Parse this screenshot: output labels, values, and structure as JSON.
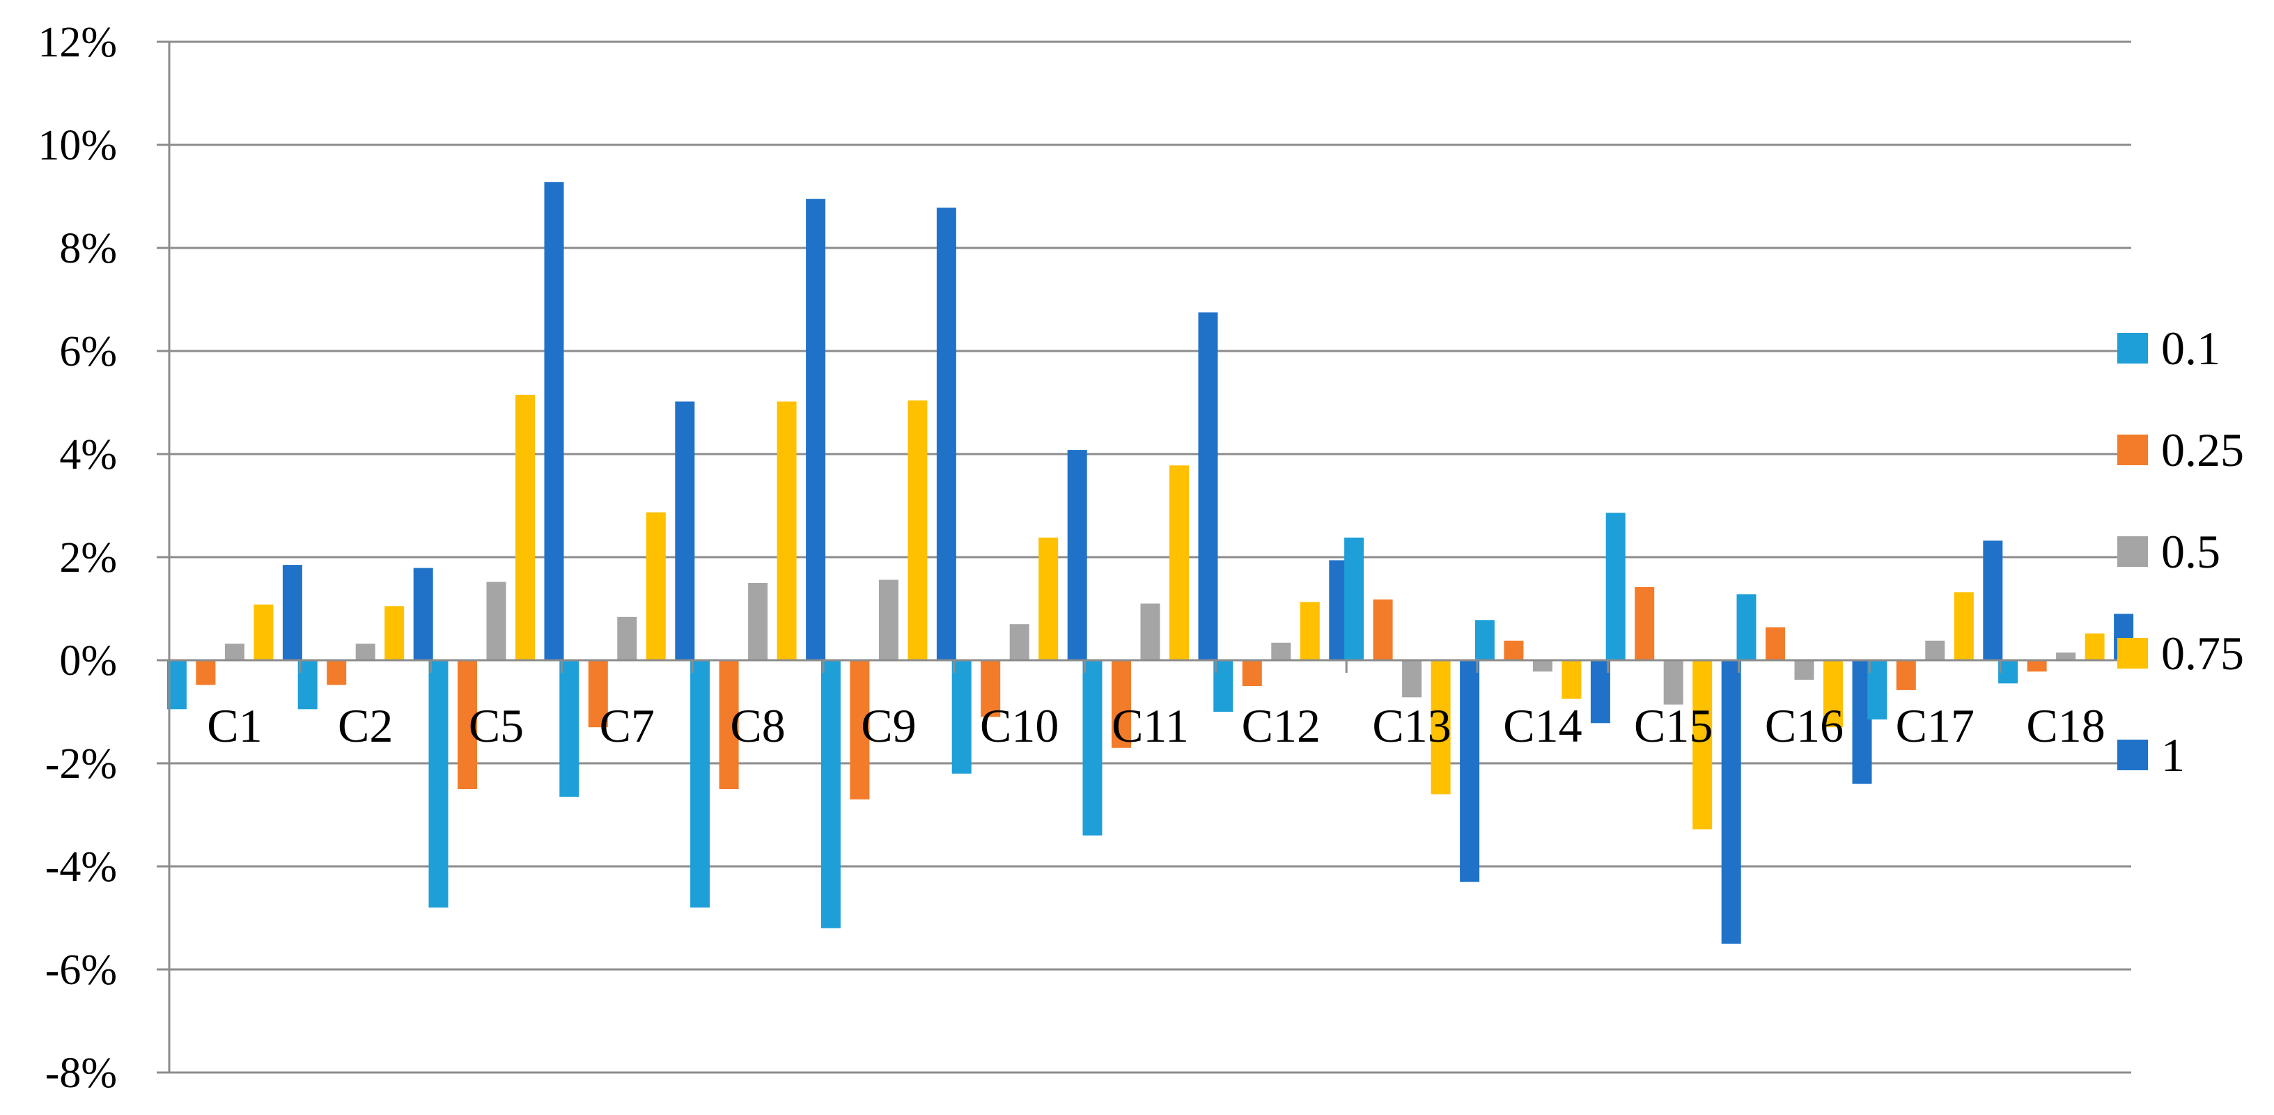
{
  "chart_data": {
    "type": "bar",
    "title": "",
    "xlabel": "",
    "ylabel": "",
    "ylim": [
      -8,
      12
    ],
    "ytick_step": 2,
    "ytick_suffix": "%",
    "grid": true,
    "legend_position": "right",
    "categories": [
      "C1",
      "C2",
      "C5",
      "C7",
      "C8",
      "C9",
      "C10",
      "C11",
      "C12",
      "C13",
      "C14",
      "C15",
      "C16",
      "C17",
      "C18"
    ],
    "series": [
      {
        "name": "0.1",
        "color": "#1F9FD8",
        "values": [
          -0.95,
          -0.95,
          -4.8,
          -2.65,
          -4.8,
          -5.2,
          -2.2,
          -3.4,
          -1.0,
          2.38,
          0.78,
          2.86,
          1.28,
          -1.15,
          -0.45
        ]
      },
      {
        "name": "0.25",
        "color": "#F27C2A",
        "values": [
          -0.48,
          -0.48,
          -2.5,
          -1.3,
          -2.5,
          -2.7,
          -1.1,
          -1.7,
          -0.5,
          1.18,
          0.38,
          1.42,
          0.64,
          -0.58,
          -0.22
        ]
      },
      {
        "name": "0.5",
        "color": "#A5A5A5",
        "values": [
          0.32,
          0.32,
          1.52,
          0.84,
          1.5,
          1.56,
          0.7,
          1.1,
          0.34,
          -0.72,
          -0.22,
          -0.86,
          -0.38,
          0.38,
          0.15
        ]
      },
      {
        "name": "0.75",
        "color": "#FFC000",
        "values": [
          1.08,
          1.05,
          5.15,
          2.87,
          5.02,
          5.04,
          2.38,
          3.78,
          1.13,
          -2.6,
          -0.75,
          -3.28,
          -1.3,
          1.32,
          0.52
        ]
      },
      {
        "name": "1",
        "color": "#1F72C8",
        "values": [
          1.85,
          1.79,
          9.28,
          5.02,
          8.95,
          8.78,
          4.08,
          6.75,
          1.94,
          -4.3,
          -1.22,
          -5.5,
          -2.4,
          2.32,
          0.9
        ]
      }
    ]
  }
}
